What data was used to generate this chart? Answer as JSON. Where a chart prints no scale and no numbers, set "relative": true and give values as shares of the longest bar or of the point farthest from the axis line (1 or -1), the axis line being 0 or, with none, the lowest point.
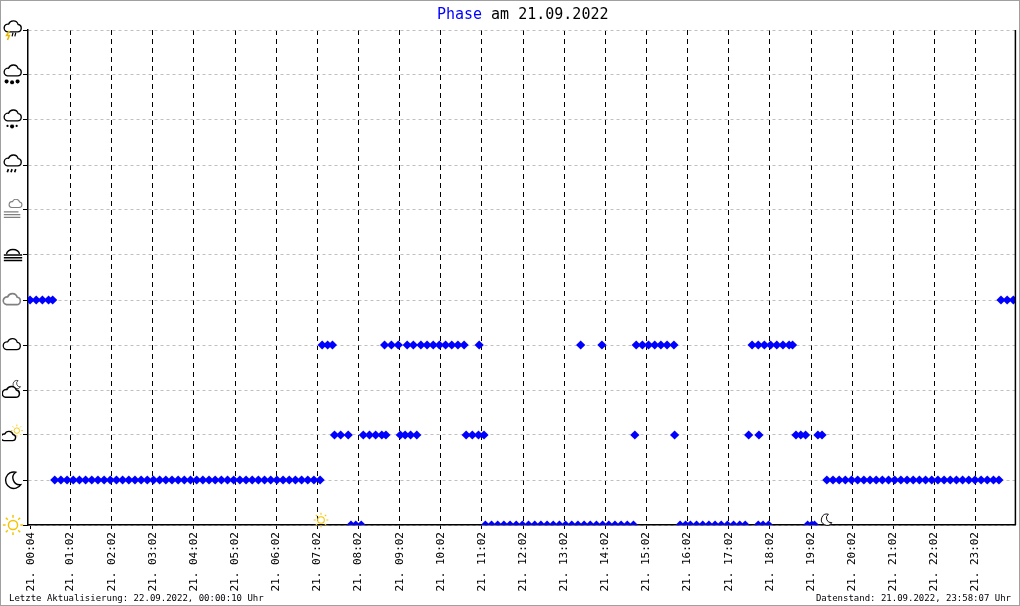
{
  "chart_data": {
    "type": "scatter",
    "title": "Phase am 21.09.2022",
    "relative": true,
    "x": [
      "2022-09-21T00:03",
      "2022-09-21T00:12",
      "2022-09-21T00:21",
      "2022-09-21T00:30",
      "2022-09-21T00:36",
      "2022-09-21T00:39",
      "2022-09-21T00:48",
      "2022-09-21T00:57",
      "2022-09-21T01:06",
      "2022-09-21T01:15",
      "2022-09-21T01:24",
      "2022-09-21T01:33",
      "2022-09-21T01:42",
      "2022-09-21T01:51",
      "2022-09-21T02:00",
      "2022-09-21T02:09",
      "2022-09-21T02:18",
      "2022-09-21T02:27",
      "2022-09-21T02:36",
      "2022-09-21T02:45",
      "2022-09-21T02:54",
      "2022-09-21T03:03",
      "2022-09-21T03:12",
      "2022-09-21T03:21",
      "2022-09-21T03:30",
      "2022-09-21T03:39",
      "2022-09-21T03:48",
      "2022-09-21T03:57",
      "2022-09-21T04:06",
      "2022-09-21T04:15",
      "2022-09-21T04:24",
      "2022-09-21T04:33",
      "2022-09-21T04:42",
      "2022-09-21T04:51",
      "2022-09-21T05:00",
      "2022-09-21T05:09",
      "2022-09-21T05:18",
      "2022-09-21T05:27",
      "2022-09-21T05:36",
      "2022-09-21T05:45",
      "2022-09-21T05:54",
      "2022-09-21T06:03",
      "2022-09-21T06:12",
      "2022-09-21T06:21",
      "2022-09-21T06:30",
      "2022-09-21T06:39",
      "2022-09-21T06:48",
      "2022-09-21T06:57",
      "2022-09-21T07:06",
      "2022-09-21T07:09",
      "2022-09-21T07:17",
      "2022-09-21T07:24",
      "2022-09-21T07:27",
      "2022-09-21T07:36",
      "2022-09-21T07:47",
      "2022-09-21T07:51",
      "2022-09-21T07:58",
      "2022-09-21T08:06",
      "2022-09-21T08:09",
      "2022-09-21T08:18",
      "2022-09-21T08:27",
      "2022-09-21T08:36",
      "2022-09-21T08:42",
      "2022-09-21T08:40",
      "2022-09-21T08:50",
      "2022-09-21T09:00",
      "2022-09-21T09:03",
      "2022-09-21T09:10",
      "2022-09-21T09:18",
      "2022-09-21T09:27",
      "2022-09-21T09:13",
      "2022-09-21T09:22",
      "2022-09-21T09:33",
      "2022-09-21T09:42",
      "2022-09-21T09:51",
      "2022-09-21T10:00",
      "2022-09-21T10:09",
      "2022-09-21T10:18",
      "2022-09-21T10:27",
      "2022-09-21T10:36",
      "2022-09-21T10:39",
      "2022-09-21T10:48",
      "2022-09-21T10:57",
      "2022-09-21T11:05",
      "2022-09-21T10:58",
      "2022-09-21T11:07",
      "2022-09-21T11:16",
      "2022-09-21T11:25",
      "2022-09-21T11:34",
      "2022-09-21T11:43",
      "2022-09-21T11:52",
      "2022-09-21T12:01",
      "2022-09-21T12:10",
      "2022-09-21T12:19",
      "2022-09-21T12:28",
      "2022-09-21T12:37",
      "2022-09-21T12:46",
      "2022-09-21T12:55",
      "2022-09-21T13:04",
      "2022-09-21T13:13",
      "2022-09-21T13:22",
      "2022-09-21T13:31",
      "2022-09-21T13:40",
      "2022-09-21T13:49",
      "2022-09-21T13:58",
      "2022-09-21T14:07",
      "2022-09-21T14:16",
      "2022-09-21T14:25",
      "2022-09-21T14:34",
      "2022-09-21T14:43",
      "2022-09-21T13:26",
      "2022-09-21T13:57",
      "2022-09-21T14:45",
      "2022-09-21T14:47",
      "2022-09-21T14:56",
      "2022-09-21T15:05",
      "2022-09-21T15:14",
      "2022-09-21T15:23",
      "2022-09-21T15:32",
      "2022-09-21T15:42",
      "2022-09-21T15:43",
      "2022-09-21T15:51",
      "2022-09-21T15:59",
      "2022-09-21T16:06",
      "2022-09-21T16:15",
      "2022-09-21T16:24",
      "2022-09-21T16:33",
      "2022-09-21T16:42",
      "2022-09-21T16:51",
      "2022-09-21T17:00",
      "2022-09-21T17:09",
      "2022-09-21T17:18",
      "2022-09-21T17:26",
      "2022-09-21T17:31",
      "2022-09-21T17:46",
      "2022-09-21T17:36",
      "2022-09-21T17:45",
      "2022-09-21T17:54",
      "2022-09-21T18:03",
      "2022-09-21T18:12",
      "2022-09-21T18:21",
      "2022-09-21T18:30",
      "2022-09-21T18:35",
      "2022-09-21T17:45",
      "2022-09-21T17:52",
      "2022-09-21T18:00",
      "2022-09-21T18:40",
      "2022-09-21T18:47",
      "2022-09-21T18:54",
      "2022-09-21T18:57",
      "2022-09-21T19:03",
      "2022-09-21T19:07",
      "2022-09-21T19:12",
      "2022-09-21T19:18",
      "2022-09-21T19:25",
      "2022-09-21T19:34",
      "2022-09-21T19:43",
      "2022-09-21T19:52",
      "2022-09-21T20:01",
      "2022-09-21T20:10",
      "2022-09-21T20:19",
      "2022-09-21T20:28",
      "2022-09-21T20:37",
      "2022-09-21T20:46",
      "2022-09-21T20:55",
      "2022-09-21T21:04",
      "2022-09-21T21:13",
      "2022-09-21T21:22",
      "2022-09-21T21:31",
      "2022-09-21T21:40",
      "2022-09-21T21:49",
      "2022-09-21T21:58",
      "2022-09-21T22:07",
      "2022-09-21T22:16",
      "2022-09-21T22:25",
      "2022-09-21T22:34",
      "2022-09-21T22:43",
      "2022-09-21T22:52",
      "2022-09-21T23:01",
      "2022-09-21T23:10",
      "2022-09-21T23:19",
      "2022-09-21T23:28",
      "2022-09-21T23:36",
      "2022-09-21T23:39",
      "2022-09-21T23:48",
      "2022-09-21T23:57"
    ],
    "values": [
      1,
      1,
      1,
      1,
      1,
      0.2,
      0.2,
      0.2,
      0.2,
      0.2,
      0.2,
      0.2,
      0.2,
      0.2,
      0.2,
      0.2,
      0.2,
      0.2,
      0.2,
      0.2,
      0.2,
      0.2,
      0.2,
      0.2,
      0.2,
      0.2,
      0.2,
      0.2,
      0.2,
      0.2,
      0.2,
      0.2,
      0.2,
      0.2,
      0.2,
      0.2,
      0.2,
      0.2,
      0.2,
      0.2,
      0.2,
      0.2,
      0.2,
      0.2,
      0.2,
      0.2,
      0.2,
      0.2,
      0.2,
      0.8,
      0.8,
      0.8,
      0.4,
      0.4,
      0.4,
      0,
      0,
      0,
      0.4,
      0.4,
      0.4,
      0.4,
      0.4,
      0.8,
      0.8,
      0.8,
      0.4,
      0.4,
      0.4,
      0.4,
      0.8,
      0.8,
      0.8,
      0.8,
      0.8,
      0.8,
      0.8,
      0.8,
      0.8,
      0.8,
      0.4,
      0.4,
      0.4,
      0.4,
      0.8,
      0,
      0,
      0,
      0,
      0,
      0,
      0,
      0,
      0,
      0,
      0,
      0,
      0,
      0,
      0,
      0,
      0,
      0,
      0,
      0,
      0,
      0,
      0,
      0,
      0,
      0.8,
      0.8,
      0.4,
      0.8,
      0.8,
      0.8,
      0.8,
      0.8,
      0.8,
      0.8,
      0.4,
      0,
      0,
      0,
      0,
      0,
      0,
      0,
      0,
      0,
      0,
      0,
      0,
      0.4,
      0.4,
      0.8,
      0.8,
      0.8,
      0.8,
      0.8,
      0.8,
      0.8,
      0.8,
      0,
      0,
      0,
      0.4,
      0.4,
      0.4,
      0,
      0,
      0,
      0.4,
      0.4,
      0.2,
      0.2,
      0.2,
      0.2,
      0.2,
      0.2,
      0.2,
      0.2,
      0.2,
      0.2,
      0.2,
      0.2,
      0.2,
      0.2,
      0.2,
      0.2,
      0.2,
      0.2,
      0.2,
      0.2,
      0.2,
      0.2,
      0.2,
      0.2,
      0.2,
      0.2,
      0.2,
      0.2,
      0.2,
      1,
      1,
      1
    ],
    "color": "#0000ff",
    "marker": "diamond",
    "xlim": [
      "2022-09-21T00:00",
      "2022-09-22T00:00"
    ],
    "xticks": [
      {
        "value": "2022-09-21T00:04",
        "label": "21. 00:04"
      },
      {
        "value": "2022-09-21T01:02",
        "label": "21. 01:02"
      },
      {
        "value": "2022-09-21T02:02",
        "label": "21. 02:02"
      },
      {
        "value": "2022-09-21T03:02",
        "label": "21. 03:02"
      },
      {
        "value": "2022-09-21T04:02",
        "label": "21. 04:02"
      },
      {
        "value": "2022-09-21T05:02",
        "label": "21. 05:02"
      },
      {
        "value": "2022-09-21T06:02",
        "label": "21. 06:02"
      },
      {
        "value": "2022-09-21T07:02",
        "label": "21. 07:02"
      },
      {
        "value": "2022-09-21T08:02",
        "label": "21. 08:02"
      },
      {
        "value": "2022-09-21T09:02",
        "label": "21. 09:02"
      },
      {
        "value": "2022-09-21T10:02",
        "label": "21. 10:02"
      },
      {
        "value": "2022-09-21T11:02",
        "label": "21. 11:02"
      },
      {
        "value": "2022-09-21T12:02",
        "label": "21. 12:02"
      },
      {
        "value": "2022-09-21T13:02",
        "label": "21. 13:02"
      },
      {
        "value": "2022-09-21T14:02",
        "label": "21. 14:02"
      },
      {
        "value": "2022-09-21T15:02",
        "label": "21. 15:02"
      },
      {
        "value": "2022-09-21T16:02",
        "label": "21. 16:02"
      },
      {
        "value": "2022-09-21T17:02",
        "label": "21. 17:02"
      },
      {
        "value": "2022-09-21T18:02",
        "label": "21. 18:02"
      },
      {
        "value": "2022-09-21T19:02",
        "label": "21. 19:02"
      },
      {
        "value": "2022-09-21T20:02",
        "label": "21. 20:02"
      },
      {
        "value": "2022-09-21T21:02",
        "label": "21. 21:02"
      },
      {
        "value": "2022-09-21T22:02",
        "label": "21. 22:02"
      },
      {
        "value": "2022-09-21T23:02",
        "label": "21. 23:02"
      }
    ],
    "grid": true,
    "annotations": [
      "Letzte Aktualisierung: 22.09.2022, 00:00:10 Uhr",
      "Datenstand: 21.09.2022, 23:58:07 Uhr"
    ]
  }
}
